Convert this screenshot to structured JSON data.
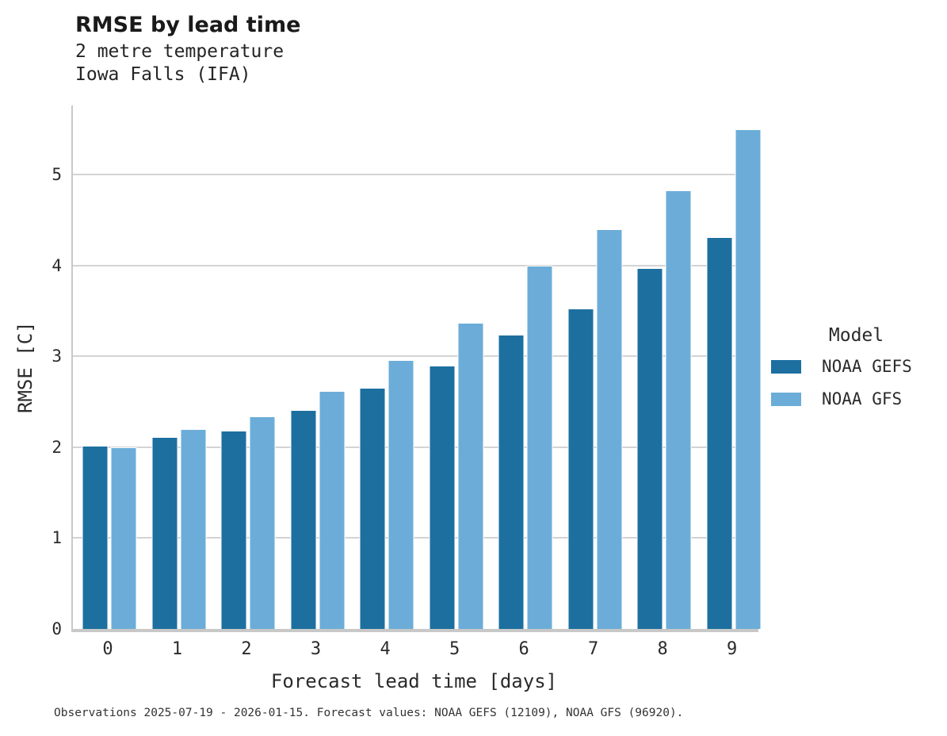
{
  "header": {
    "title": "RMSE by lead time",
    "subtitle_lines": [
      "2 metre temperature",
      "Iowa Falls (IFA)"
    ]
  },
  "chart_data": {
    "type": "bar",
    "title": "RMSE by lead time",
    "subtitle": "2 metre temperature / Iowa Falls (IFA)",
    "categories": [
      "0",
      "1",
      "2",
      "3",
      "4",
      "5",
      "6",
      "7",
      "8",
      "9"
    ],
    "series": [
      {
        "name": "NOAA GEFS",
        "color": "#1d6fa0",
        "values": [
          2.02,
          2.11,
          2.18,
          2.41,
          2.65,
          2.9,
          3.24,
          3.53,
          3.97,
          4.31
        ]
      },
      {
        "name": "NOAA GFS",
        "color": "#6badd8",
        "values": [
          2.0,
          2.2,
          2.34,
          2.62,
          2.96,
          3.37,
          4.0,
          4.4,
          4.83,
          5.5
        ]
      }
    ],
    "xlabel": "Forecast lead time [days]",
    "ylabel": "RMSE [C]",
    "ylim": [
      0,
      5.76
    ],
    "yticks": [
      0,
      1,
      2,
      3,
      4,
      5
    ],
    "grid": true,
    "legend_title": "Model",
    "legend_position": "right",
    "gridline_color": "#d3d3d3",
    "spine_color": "#c8c8c8"
  },
  "legend": {
    "title": "Model",
    "entries": [
      {
        "label": "NOAA GEFS",
        "color": "#1d6fa0"
      },
      {
        "label": "NOAA GFS",
        "color": "#6badd8"
      }
    ]
  },
  "caption": "Observations 2025-07-19 - 2026-01-15. Forecast values: NOAA GEFS (12109), NOAA GFS (96920)."
}
